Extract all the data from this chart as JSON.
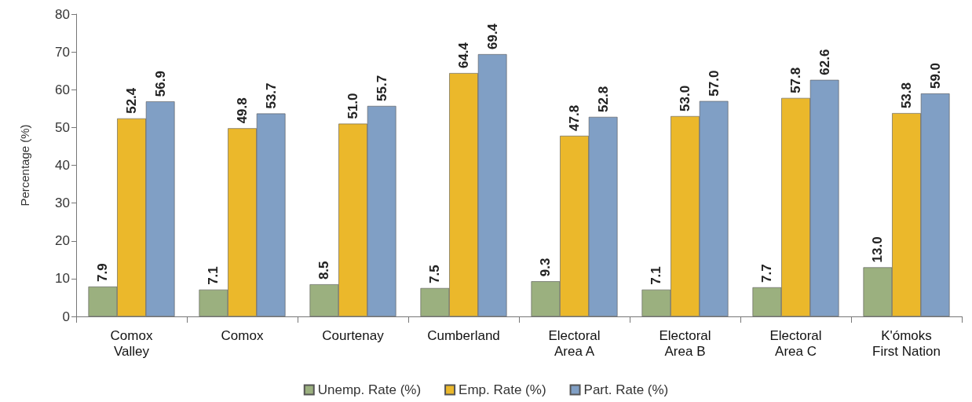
{
  "chart_data": {
    "type": "bar",
    "ylabel": "Percentage (%)",
    "categories": [
      "Comox\nValley",
      "Comox",
      "Courtenay",
      "Cumberland",
      "Electoral\nArea A",
      "Electoral\nArea B",
      "Electoral\nArea C",
      "K'ómoks\nFirst Nation"
    ],
    "series": [
      {
        "name": "Unemp. Rate (%)",
        "color": "#9bb07f",
        "values": [
          7.9,
          7.1,
          8.5,
          7.5,
          9.3,
          7.1,
          7.7,
          13.0
        ],
        "value_labels": [
          "7.9",
          "7.1",
          "8.5",
          "7.5",
          "9.3",
          "7.1",
          "7.7",
          "13.0"
        ]
      },
      {
        "name": "Emp. Rate (%)",
        "color": "#ebb82b",
        "values": [
          52.4,
          49.8,
          51.0,
          64.4,
          47.8,
          53.0,
          57.8,
          53.8
        ],
        "value_labels": [
          "52.4",
          "49.8",
          "51.0",
          "64.4",
          "47.8",
          "53.0",
          "57.8",
          "53.8"
        ]
      },
      {
        "name": "Part. Rate (%)",
        "color": "#809fc5",
        "values": [
          56.9,
          53.7,
          55.7,
          69.4,
          52.8,
          57.0,
          62.6,
          59.0
        ],
        "value_labels": [
          "56.9",
          "53.7",
          "55.7",
          "69.4",
          "52.8",
          "57.0",
          "62.6",
          "59.0"
        ]
      }
    ],
    "ylim": [
      0,
      80
    ],
    "yticks": [
      0,
      10,
      20,
      30,
      40,
      50,
      60,
      70,
      80
    ],
    "grid": false,
    "legend": "bottom"
  }
}
